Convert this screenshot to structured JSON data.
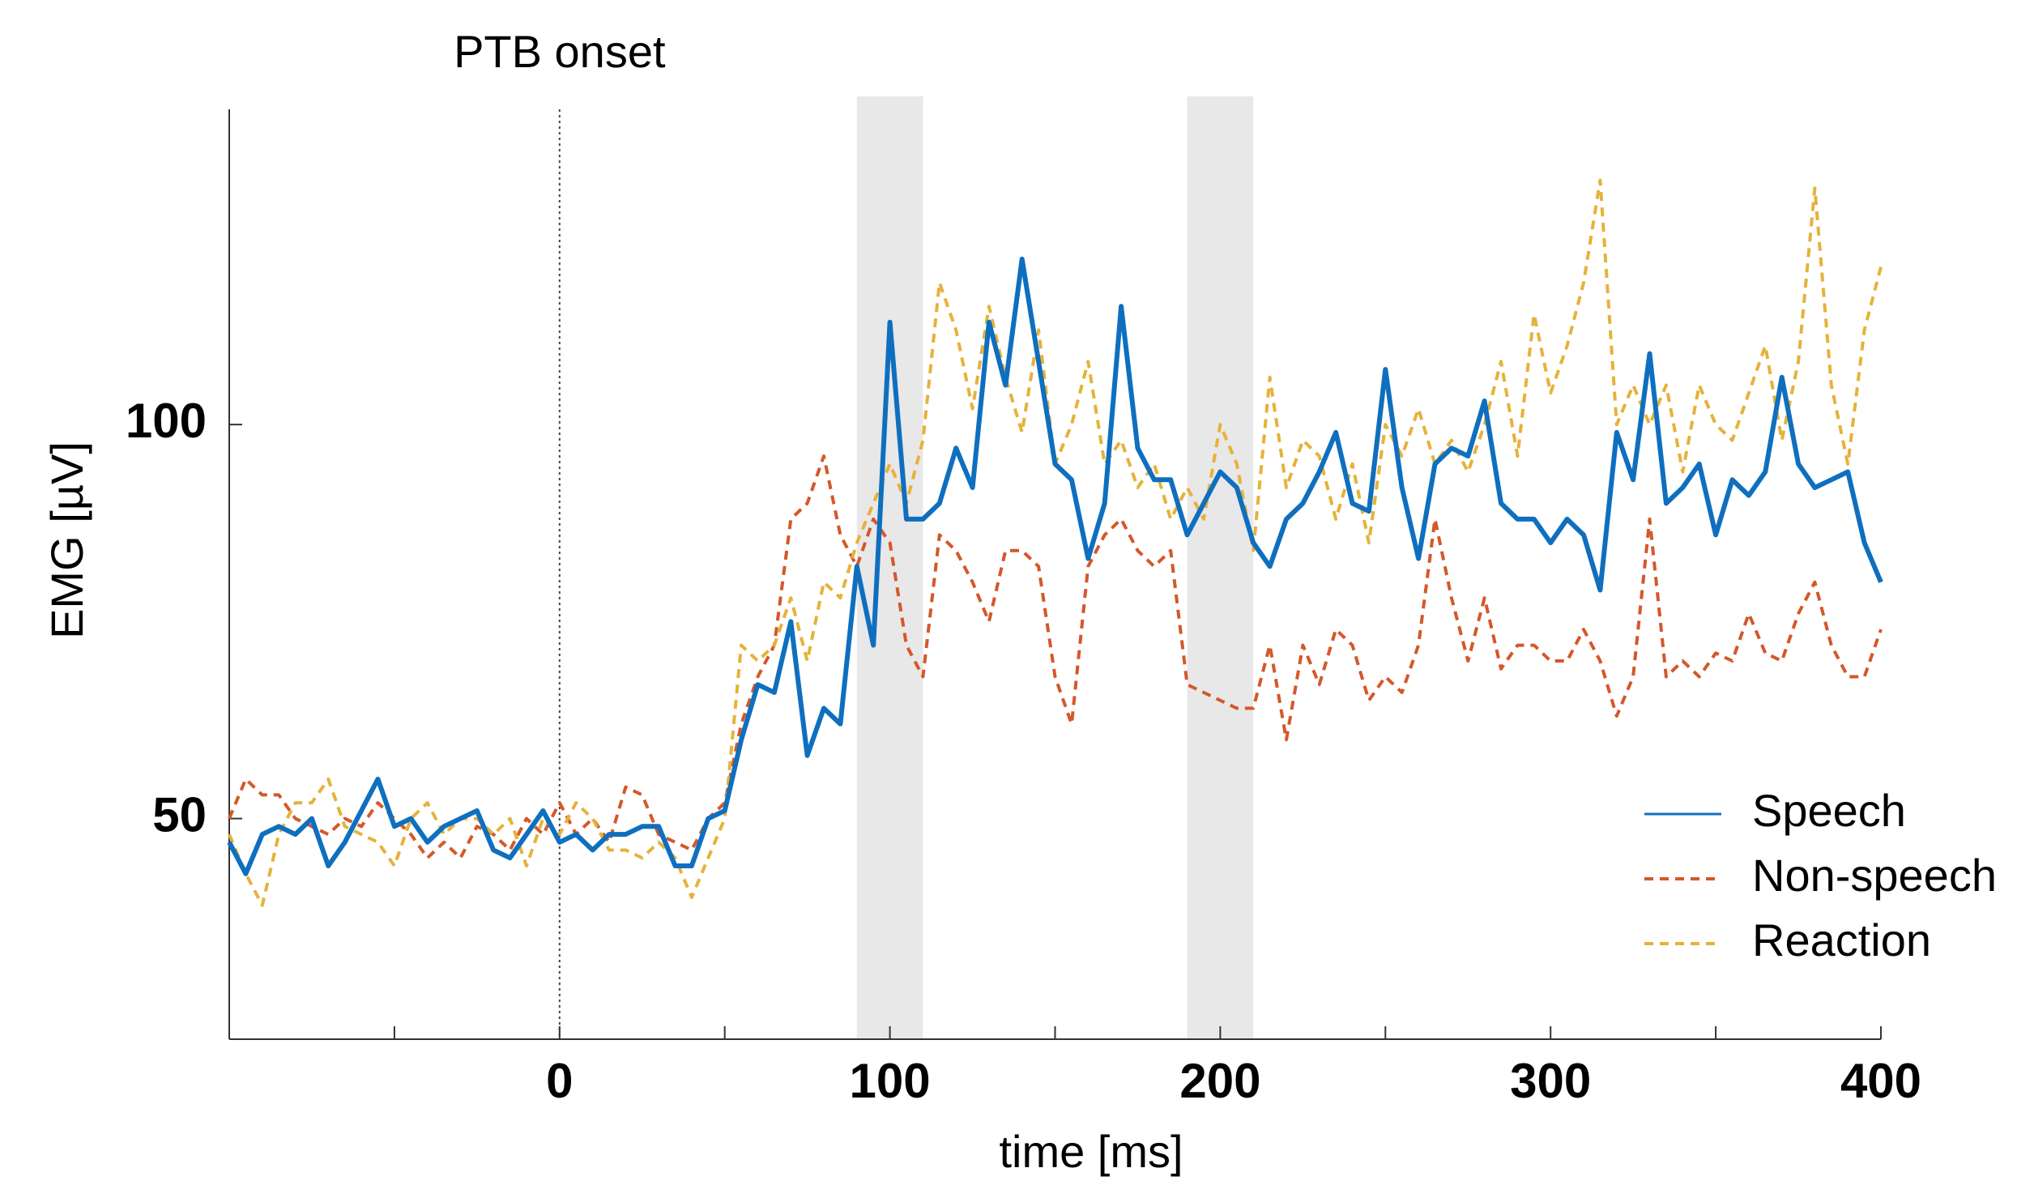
{
  "chart_data": {
    "type": "line",
    "title": "PTB onset",
    "x_label": "time [ms]",
    "y_label": "EMG [µV]",
    "x": [
      -100,
      -95,
      -90,
      -85,
      -80,
      -75,
      -70,
      -65,
      -60,
      -55,
      -50,
      -45,
      -40,
      -35,
      -30,
      -25,
      -20,
      -15,
      -10,
      -5,
      0,
      5,
      10,
      15,
      20,
      25,
      30,
      35,
      40,
      45,
      50,
      55,
      60,
      65,
      70,
      75,
      80,
      85,
      90,
      95,
      100,
      105,
      110,
      115,
      120,
      125,
      130,
      135,
      140,
      145,
      150,
      155,
      160,
      165,
      170,
      175,
      180,
      185,
      190,
      195,
      200,
      205,
      210,
      215,
      220,
      225,
      230,
      235,
      240,
      245,
      250,
      255,
      260,
      265,
      270,
      275,
      280,
      285,
      290,
      295,
      300,
      305,
      310,
      315,
      320,
      325,
      330,
      335,
      340,
      345,
      350,
      355,
      360,
      365,
      370,
      375,
      380,
      385,
      390,
      395,
      400
    ],
    "series": [
      {
        "name": "Speech",
        "color": "#0f6fbf",
        "dashed": false,
        "values": [
          47,
          43,
          48,
          49,
          48,
          50,
          44,
          47,
          51,
          55,
          49,
          50,
          47,
          49,
          50,
          51,
          46,
          45,
          48,
          51,
          47,
          48,
          46,
          48,
          48,
          49,
          49,
          44,
          44,
          50,
          51,
          60,
          67,
          66,
          75,
          58,
          64,
          62,
          82,
          72,
          113,
          88,
          88,
          90,
          97,
          92,
          113,
          105,
          121,
          108,
          95,
          93,
          83,
          90,
          115,
          97,
          93,
          93,
          86,
          90,
          94,
          92,
          85,
          82,
          88,
          90,
          94,
          99,
          90,
          89,
          107,
          92,
          83,
          95,
          97,
          96,
          103,
          90,
          88,
          88,
          85,
          88,
          86,
          79,
          99,
          93,
          109,
          90,
          92,
          95,
          86,
          93,
          91,
          94,
          106,
          95,
          92,
          93,
          94,
          85,
          80
        ]
      },
      {
        "name": "Non-speech",
        "color": "#d4582a",
        "dashed": true,
        "values": [
          50,
          55,
          53,
          53,
          50,
          49,
          48,
          50,
          49,
          52,
          50,
          48,
          45,
          47,
          45,
          49,
          48,
          46,
          50,
          48,
          52,
          48,
          50,
          47,
          54,
          53,
          48,
          47,
          46,
          50,
          52,
          62,
          68,
          72,
          88,
          90,
          96,
          86,
          82,
          88,
          85,
          72,
          68,
          86,
          84,
          80,
          75,
          84,
          84,
          82,
          68,
          62,
          82,
          86,
          88,
          84,
          82,
          84,
          67,
          66,
          65,
          64,
          64,
          72,
          60,
          72,
          67,
          74,
          72,
          65,
          68,
          66,
          72,
          88,
          78,
          70,
          78,
          69,
          72,
          72,
          70,
          70,
          74,
          70,
          63,
          68,
          88,
          68,
          70,
          68,
          71,
          70,
          76,
          71,
          70,
          76,
          80,
          72,
          68,
          68,
          74
        ]
      },
      {
        "name": "Reaction",
        "color": "#e6b23a",
        "dashed": true,
        "values": [
          48,
          43,
          39,
          48,
          52,
          52,
          55,
          49,
          48,
          47,
          44,
          50,
          52,
          48,
          50,
          50,
          48,
          50,
          44,
          50,
          48,
          52,
          50,
          46,
          46,
          45,
          47,
          45,
          40,
          45,
          50,
          72,
          70,
          72,
          78,
          70,
          80,
          78,
          85,
          90,
          95,
          90,
          98,
          118,
          112,
          102,
          115,
          106,
          99,
          112,
          95,
          100,
          108,
          95,
          98,
          92,
          95,
          88,
          92,
          88,
          100,
          95,
          84,
          106,
          92,
          98,
          96,
          88,
          95,
          85,
          100,
          96,
          102,
          95,
          98,
          94,
          100,
          108,
          96,
          114,
          104,
          110,
          118,
          131,
          100,
          105,
          100,
          105,
          94,
          105,
          100,
          98,
          104,
          110,
          98,
          108,
          130,
          105,
          95,
          112,
          120
        ]
      }
    ],
    "xlim": [
      -100,
      400
    ],
    "xticks": [
      0,
      100,
      200,
      300,
      400
    ],
    "xminor_ticks": [
      -50,
      50,
      150,
      250,
      350
    ],
    "ylim": [
      22,
      140
    ],
    "yticks": [
      50,
      100
    ],
    "onset": 0,
    "shaded_regions": [
      [
        90,
        110
      ],
      [
        190,
        210
      ]
    ],
    "shade_color": "#e8e8e8",
    "legend": "lower right"
  }
}
